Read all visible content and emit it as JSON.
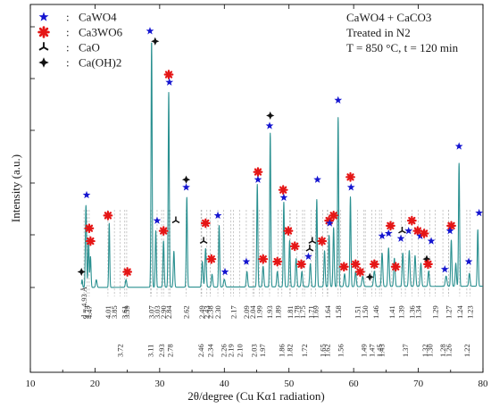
{
  "chart_data": {
    "type": "line",
    "title": "CaWO4 + CaCO3",
    "subtitle": [
      "Treated in N2",
      "T = 850 °C, t = 120 min"
    ],
    "xlabel": "2θ/degree (Cu Kα1 radiation)",
    "ylabel": "Intensity (a.u.)",
    "xlim": [
      10,
      80
    ],
    "xticks": [
      "10",
      "20",
      "30",
      "40",
      "50",
      "60",
      "70",
      "80"
    ],
    "line_color": "#2a9090",
    "legend": {
      "placement": "top-left",
      "separator": ":",
      "entries": [
        {
          "name": "CaWO4",
          "marker": "star",
          "color": "#1515d0"
        },
        {
          "name": "Ca3WO6",
          "marker": "asterisk",
          "color": "#e51616"
        },
        {
          "name": "CaO",
          "marker": "tri",
          "color": "#111111"
        },
        {
          "name": "Ca(OH)2",
          "marker": "cross",
          "color": "#111111"
        }
      ]
    },
    "peaks": [
      {
        "x": 18.0,
        "h": 0.03,
        "w": 0.18
      },
      {
        "x": 18.6,
        "h": 0.32,
        "w": 0.22
      },
      {
        "x": 19.0,
        "h": 0.18,
        "w": 0.2
      },
      {
        "x": 19.3,
        "h": 0.12,
        "w": 0.2
      },
      {
        "x": 20.2,
        "h": 0.03,
        "w": 0.25
      },
      {
        "x": 22.2,
        "h": 0.25,
        "w": 0.18
      },
      {
        "x": 24.8,
        "h": 0.03,
        "w": 0.25
      },
      {
        "x": 28.75,
        "h": 0.96,
        "w": 0.2
      },
      {
        "x": 29.4,
        "h": 0.22,
        "w": 0.2
      },
      {
        "x": 30.6,
        "h": 0.18,
        "w": 0.22
      },
      {
        "x": 31.4,
        "h": 0.76,
        "w": 0.2
      },
      {
        "x": 32.2,
        "h": 0.14,
        "w": 0.22
      },
      {
        "x": 34.2,
        "h": 0.35,
        "w": 0.2
      },
      {
        "x": 36.6,
        "h": 0.1,
        "w": 0.25
      },
      {
        "x": 37.1,
        "h": 0.15,
        "w": 0.25
      },
      {
        "x": 38.1,
        "h": 0.05,
        "w": 0.25
      },
      {
        "x": 39.2,
        "h": 0.24,
        "w": 0.2
      },
      {
        "x": 40.0,
        "h": 0.03,
        "w": 0.3
      },
      {
        "x": 43.5,
        "h": 0.06,
        "w": 0.25
      },
      {
        "x": 45.1,
        "h": 0.4,
        "w": 0.2
      },
      {
        "x": 46.0,
        "h": 0.08,
        "w": 0.25
      },
      {
        "x": 47.1,
        "h": 0.6,
        "w": 0.2
      },
      {
        "x": 48.2,
        "h": 0.06,
        "w": 0.25
      },
      {
        "x": 49.2,
        "h": 0.33,
        "w": 0.2
      },
      {
        "x": 50.1,
        "h": 0.18,
        "w": 0.22
      },
      {
        "x": 51.1,
        "h": 0.11,
        "w": 0.25
      },
      {
        "x": 52.0,
        "h": 0.06,
        "w": 0.25
      },
      {
        "x": 53.3,
        "h": 0.09,
        "w": 0.25
      },
      {
        "x": 54.3,
        "h": 0.34,
        "w": 0.2
      },
      {
        "x": 55.5,
        "h": 0.14,
        "w": 0.22
      },
      {
        "x": 56.2,
        "h": 0.2,
        "w": 0.22
      },
      {
        "x": 56.9,
        "h": 0.23,
        "w": 0.22
      },
      {
        "x": 57.6,
        "h": 0.66,
        "w": 0.2
      },
      {
        "x": 58.6,
        "h": 0.05,
        "w": 0.25
      },
      {
        "x": 59.5,
        "h": 0.35,
        "w": 0.2
      },
      {
        "x": 60.3,
        "h": 0.06,
        "w": 0.25
      },
      {
        "x": 61.4,
        "h": 0.04,
        "w": 0.3
      },
      {
        "x": 63.2,
        "h": 0.06,
        "w": 0.3
      },
      {
        "x": 64.4,
        "h": 0.13,
        "w": 0.25
      },
      {
        "x": 65.4,
        "h": 0.15,
        "w": 0.25
      },
      {
        "x": 66.3,
        "h": 0.11,
        "w": 0.25
      },
      {
        "x": 67.6,
        "h": 0.13,
        "w": 0.25
      },
      {
        "x": 68.6,
        "h": 0.14,
        "w": 0.25
      },
      {
        "x": 69.5,
        "h": 0.12,
        "w": 0.25
      },
      {
        "x": 70.4,
        "h": 0.09,
        "w": 0.25
      },
      {
        "x": 71.6,
        "h": 0.06,
        "w": 0.25
      },
      {
        "x": 74.3,
        "h": 0.04,
        "w": 0.3
      },
      {
        "x": 75.1,
        "h": 0.18,
        "w": 0.22
      },
      {
        "x": 75.8,
        "h": 0.09,
        "w": 0.22
      },
      {
        "x": 76.3,
        "h": 0.48,
        "w": 0.2
      },
      {
        "x": 77.9,
        "h": 0.05,
        "w": 0.25
      },
      {
        "x": 79.2,
        "h": 0.22,
        "w": 0.2
      }
    ],
    "markers": [
      {
        "x": 17.9,
        "h": 0.04,
        "type": "cross"
      },
      {
        "x": 18.7,
        "h": 0.34,
        "type": "star"
      },
      {
        "x": 19.1,
        "h": 0.21,
        "type": "asterisk"
      },
      {
        "x": 19.3,
        "h": 0.16,
        "type": "asterisk"
      },
      {
        "x": 22.0,
        "h": 0.26,
        "type": "asterisk"
      },
      {
        "x": 25.0,
        "h": 0.04,
        "type": "asterisk"
      },
      {
        "x": 28.5,
        "h": 0.98,
        "type": "star"
      },
      {
        "x": 29.3,
        "h": 0.94,
        "type": "cross"
      },
      {
        "x": 29.6,
        "h": 0.24,
        "type": "star"
      },
      {
        "x": 30.6,
        "h": 0.2,
        "type": "asterisk"
      },
      {
        "x": 31.4,
        "h": 0.81,
        "type": "asterisk"
      },
      {
        "x": 31.5,
        "h": 0.78,
        "type": "star"
      },
      {
        "x": 32.5,
        "h": 0.24,
        "type": "tri"
      },
      {
        "x": 34.1,
        "h": 0.4,
        "type": "cross"
      },
      {
        "x": 34.1,
        "h": 0.37,
        "type": "star"
      },
      {
        "x": 36.8,
        "h": 0.16,
        "type": "tri"
      },
      {
        "x": 37.1,
        "h": 0.23,
        "type": "asterisk"
      },
      {
        "x": 38.0,
        "h": 0.09,
        "type": "asterisk"
      },
      {
        "x": 39.0,
        "h": 0.26,
        "type": "star"
      },
      {
        "x": 40.1,
        "h": 0.04,
        "type": "star"
      },
      {
        "x": 43.4,
        "h": 0.08,
        "type": "star"
      },
      {
        "x": 45.2,
        "h": 0.43,
        "type": "asterisk"
      },
      {
        "x": 45.2,
        "h": 0.4,
        "type": "star"
      },
      {
        "x": 46.0,
        "h": 0.09,
        "type": "asterisk"
      },
      {
        "x": 47.1,
        "h": 0.65,
        "type": "cross"
      },
      {
        "x": 47.0,
        "h": 0.61,
        "type": "star"
      },
      {
        "x": 48.2,
        "h": 0.08,
        "type": "asterisk"
      },
      {
        "x": 49.1,
        "h": 0.36,
        "type": "asterisk"
      },
      {
        "x": 49.2,
        "h": 0.33,
        "type": "star"
      },
      {
        "x": 49.9,
        "h": 0.2,
        "type": "asterisk"
      },
      {
        "x": 50.9,
        "h": 0.14,
        "type": "asterisk"
      },
      {
        "x": 51.9,
        "h": 0.07,
        "type": "asterisk"
      },
      {
        "x": 53.0,
        "h": 0.1,
        "type": "star"
      },
      {
        "x": 53.2,
        "h": 0.13,
        "type": "tri"
      },
      {
        "x": 53.6,
        "h": 0.16,
        "type": "tri"
      },
      {
        "x": 54.4,
        "h": 0.4,
        "type": "star"
      },
      {
        "x": 55.1,
        "h": 0.16,
        "type": "asterisk"
      },
      {
        "x": 56.2,
        "h": 0.24,
        "type": "asterisk"
      },
      {
        "x": 56.9,
        "h": 0.26,
        "type": "asterisk"
      },
      {
        "x": 56.3,
        "h": 0.23,
        "type": "star"
      },
      {
        "x": 57.6,
        "h": 0.71,
        "type": "star"
      },
      {
        "x": 58.5,
        "h": 0.06,
        "type": "asterisk"
      },
      {
        "x": 59.5,
        "h": 0.41,
        "type": "asterisk"
      },
      {
        "x": 59.6,
        "h": 0.37,
        "type": "star"
      },
      {
        "x": 60.3,
        "h": 0.07,
        "type": "asterisk"
      },
      {
        "x": 61.0,
        "h": 0.04,
        "type": "asterisk"
      },
      {
        "x": 62.5,
        "h": 0.02,
        "type": "cross"
      },
      {
        "x": 63.2,
        "h": 0.07,
        "type": "asterisk"
      },
      {
        "x": 64.4,
        "h": 0.18,
        "type": "star"
      },
      {
        "x": 65.4,
        "h": 0.19,
        "type": "star"
      },
      {
        "x": 65.7,
        "h": 0.22,
        "type": "asterisk"
      },
      {
        "x": 66.5,
        "h": 0.06,
        "type": "asterisk"
      },
      {
        "x": 67.5,
        "h": 0.2,
        "type": "tri"
      },
      {
        "x": 67.3,
        "h": 0.17,
        "type": "star"
      },
      {
        "x": 68.5,
        "h": 0.2,
        "type": "star"
      },
      {
        "x": 69.0,
        "h": 0.24,
        "type": "asterisk"
      },
      {
        "x": 69.9,
        "h": 0.2,
        "type": "asterisk"
      },
      {
        "x": 70.3,
        "h": 0.18,
        "type": "star"
      },
      {
        "x": 70.9,
        "h": 0.19,
        "type": "asterisk"
      },
      {
        "x": 71.3,
        "h": 0.09,
        "type": "cross"
      },
      {
        "x": 71.5,
        "h": 0.07,
        "type": "asterisk"
      },
      {
        "x": 72.0,
        "h": 0.16,
        "type": "star"
      },
      {
        "x": 74.1,
        "h": 0.05,
        "type": "star"
      },
      {
        "x": 75.1,
        "h": 0.22,
        "type": "asterisk"
      },
      {
        "x": 74.9,
        "h": 0.2,
        "type": "star"
      },
      {
        "x": 76.3,
        "h": 0.53,
        "type": "star"
      },
      {
        "x": 77.8,
        "h": 0.08,
        "type": "star"
      },
      {
        "x": 79.4,
        "h": 0.27,
        "type": "star"
      }
    ],
    "d_spacings_upper": [
      {
        "x": 18.3,
        "label": "d = 4.93 Å"
      },
      {
        "x": 18.8,
        "label": "4.73"
      },
      {
        "x": 19.1,
        "label": "4.47"
      },
      {
        "x": 22.0,
        "label": "4.01"
      },
      {
        "x": 23.0,
        "label": "3.85"
      },
      {
        "x": 24.6,
        "label": "3.61"
      },
      {
        "x": 24.9,
        "label": "3.59"
      },
      {
        "x": 28.7,
        "label": "3.07"
      },
      {
        "x": 29.6,
        "label": "3.03"
      },
      {
        "x": 30.6,
        "label": "2.90"
      },
      {
        "x": 31.4,
        "label": "2.84"
      },
      {
        "x": 34.1,
        "label": "2.62"
      },
      {
        "x": 36.5,
        "label": "2.49"
      },
      {
        "x": 37.3,
        "label": "2.43"
      },
      {
        "x": 37.8,
        "label": "2.38"
      },
      {
        "x": 39.0,
        "label": "2.30"
      },
      {
        "x": 41.4,
        "label": "2.17"
      },
      {
        "x": 43.4,
        "label": "2.09"
      },
      {
        "x": 44.4,
        "label": "2.04"
      },
      {
        "x": 45.4,
        "label": "1.99"
      },
      {
        "x": 47.0,
        "label": "1.93"
      },
      {
        "x": 48.3,
        "label": "1.89"
      },
      {
        "x": 50.2,
        "label": "1.81"
      },
      {
        "x": 51.2,
        "label": "1.78"
      },
      {
        "x": 52.1,
        "label": "1.75"
      },
      {
        "x": 53.4,
        "label": "1.71"
      },
      {
        "x": 54.1,
        "label": "1.69"
      },
      {
        "x": 56.0,
        "label": "1.64"
      },
      {
        "x": 57.6,
        "label": "1.58"
      },
      {
        "x": 60.6,
        "label": "1.51"
      },
      {
        "x": 61.8,
        "label": "1.50"
      },
      {
        "x": 63.4,
        "label": "1.46"
      },
      {
        "x": 65.9,
        "label": "1.41"
      },
      {
        "x": 67.4,
        "label": "1.39"
      },
      {
        "x": 69.0,
        "label": "1.36"
      },
      {
        "x": 70.0,
        "label": "1.34"
      },
      {
        "x": 72.6,
        "label": "1.29"
      },
      {
        "x": 74.7,
        "label": "1.27"
      },
      {
        "x": 76.4,
        "label": "1.24"
      },
      {
        "x": 78.0,
        "label": "1.23"
      }
    ],
    "d_spacings_lower": [
      {
        "x": 23.9,
        "label": "3.72"
      },
      {
        "x": 28.6,
        "label": "3.11"
      },
      {
        "x": 30.3,
        "label": "2.93"
      },
      {
        "x": 31.6,
        "label": "2.78"
      },
      {
        "x": 36.4,
        "label": "2.46"
      },
      {
        "x": 37.8,
        "label": "2.34"
      },
      {
        "x": 39.9,
        "label": "2.26"
      },
      {
        "x": 41.0,
        "label": "2.19"
      },
      {
        "x": 42.4,
        "label": "2.10"
      },
      {
        "x": 44.6,
        "label": "2.03"
      },
      {
        "x": 45.9,
        "label": "1.97"
      },
      {
        "x": 48.9,
        "label": "1.86"
      },
      {
        "x": 50.1,
        "label": "1.82"
      },
      {
        "x": 52.4,
        "label": "1.72"
      },
      {
        "x": 55.2,
        "label": "1.65"
      },
      {
        "x": 55.9,
        "label": "1.62"
      },
      {
        "x": 58.0,
        "label": "1.56"
      },
      {
        "x": 61.6,
        "label": "1.49"
      },
      {
        "x": 62.8,
        "label": "1.47"
      },
      {
        "x": 64.0,
        "label": "1.45"
      },
      {
        "x": 64.3,
        "label": "1.43"
      },
      {
        "x": 68.0,
        "label": "1.37"
      },
      {
        "x": 71.0,
        "label": "1.32"
      },
      {
        "x": 71.8,
        "label": "1.30"
      },
      {
        "x": 73.8,
        "label": "1.28"
      },
      {
        "x": 74.7,
        "label": "1.26"
      },
      {
        "x": 77.5,
        "label": "1.22"
      }
    ]
  }
}
